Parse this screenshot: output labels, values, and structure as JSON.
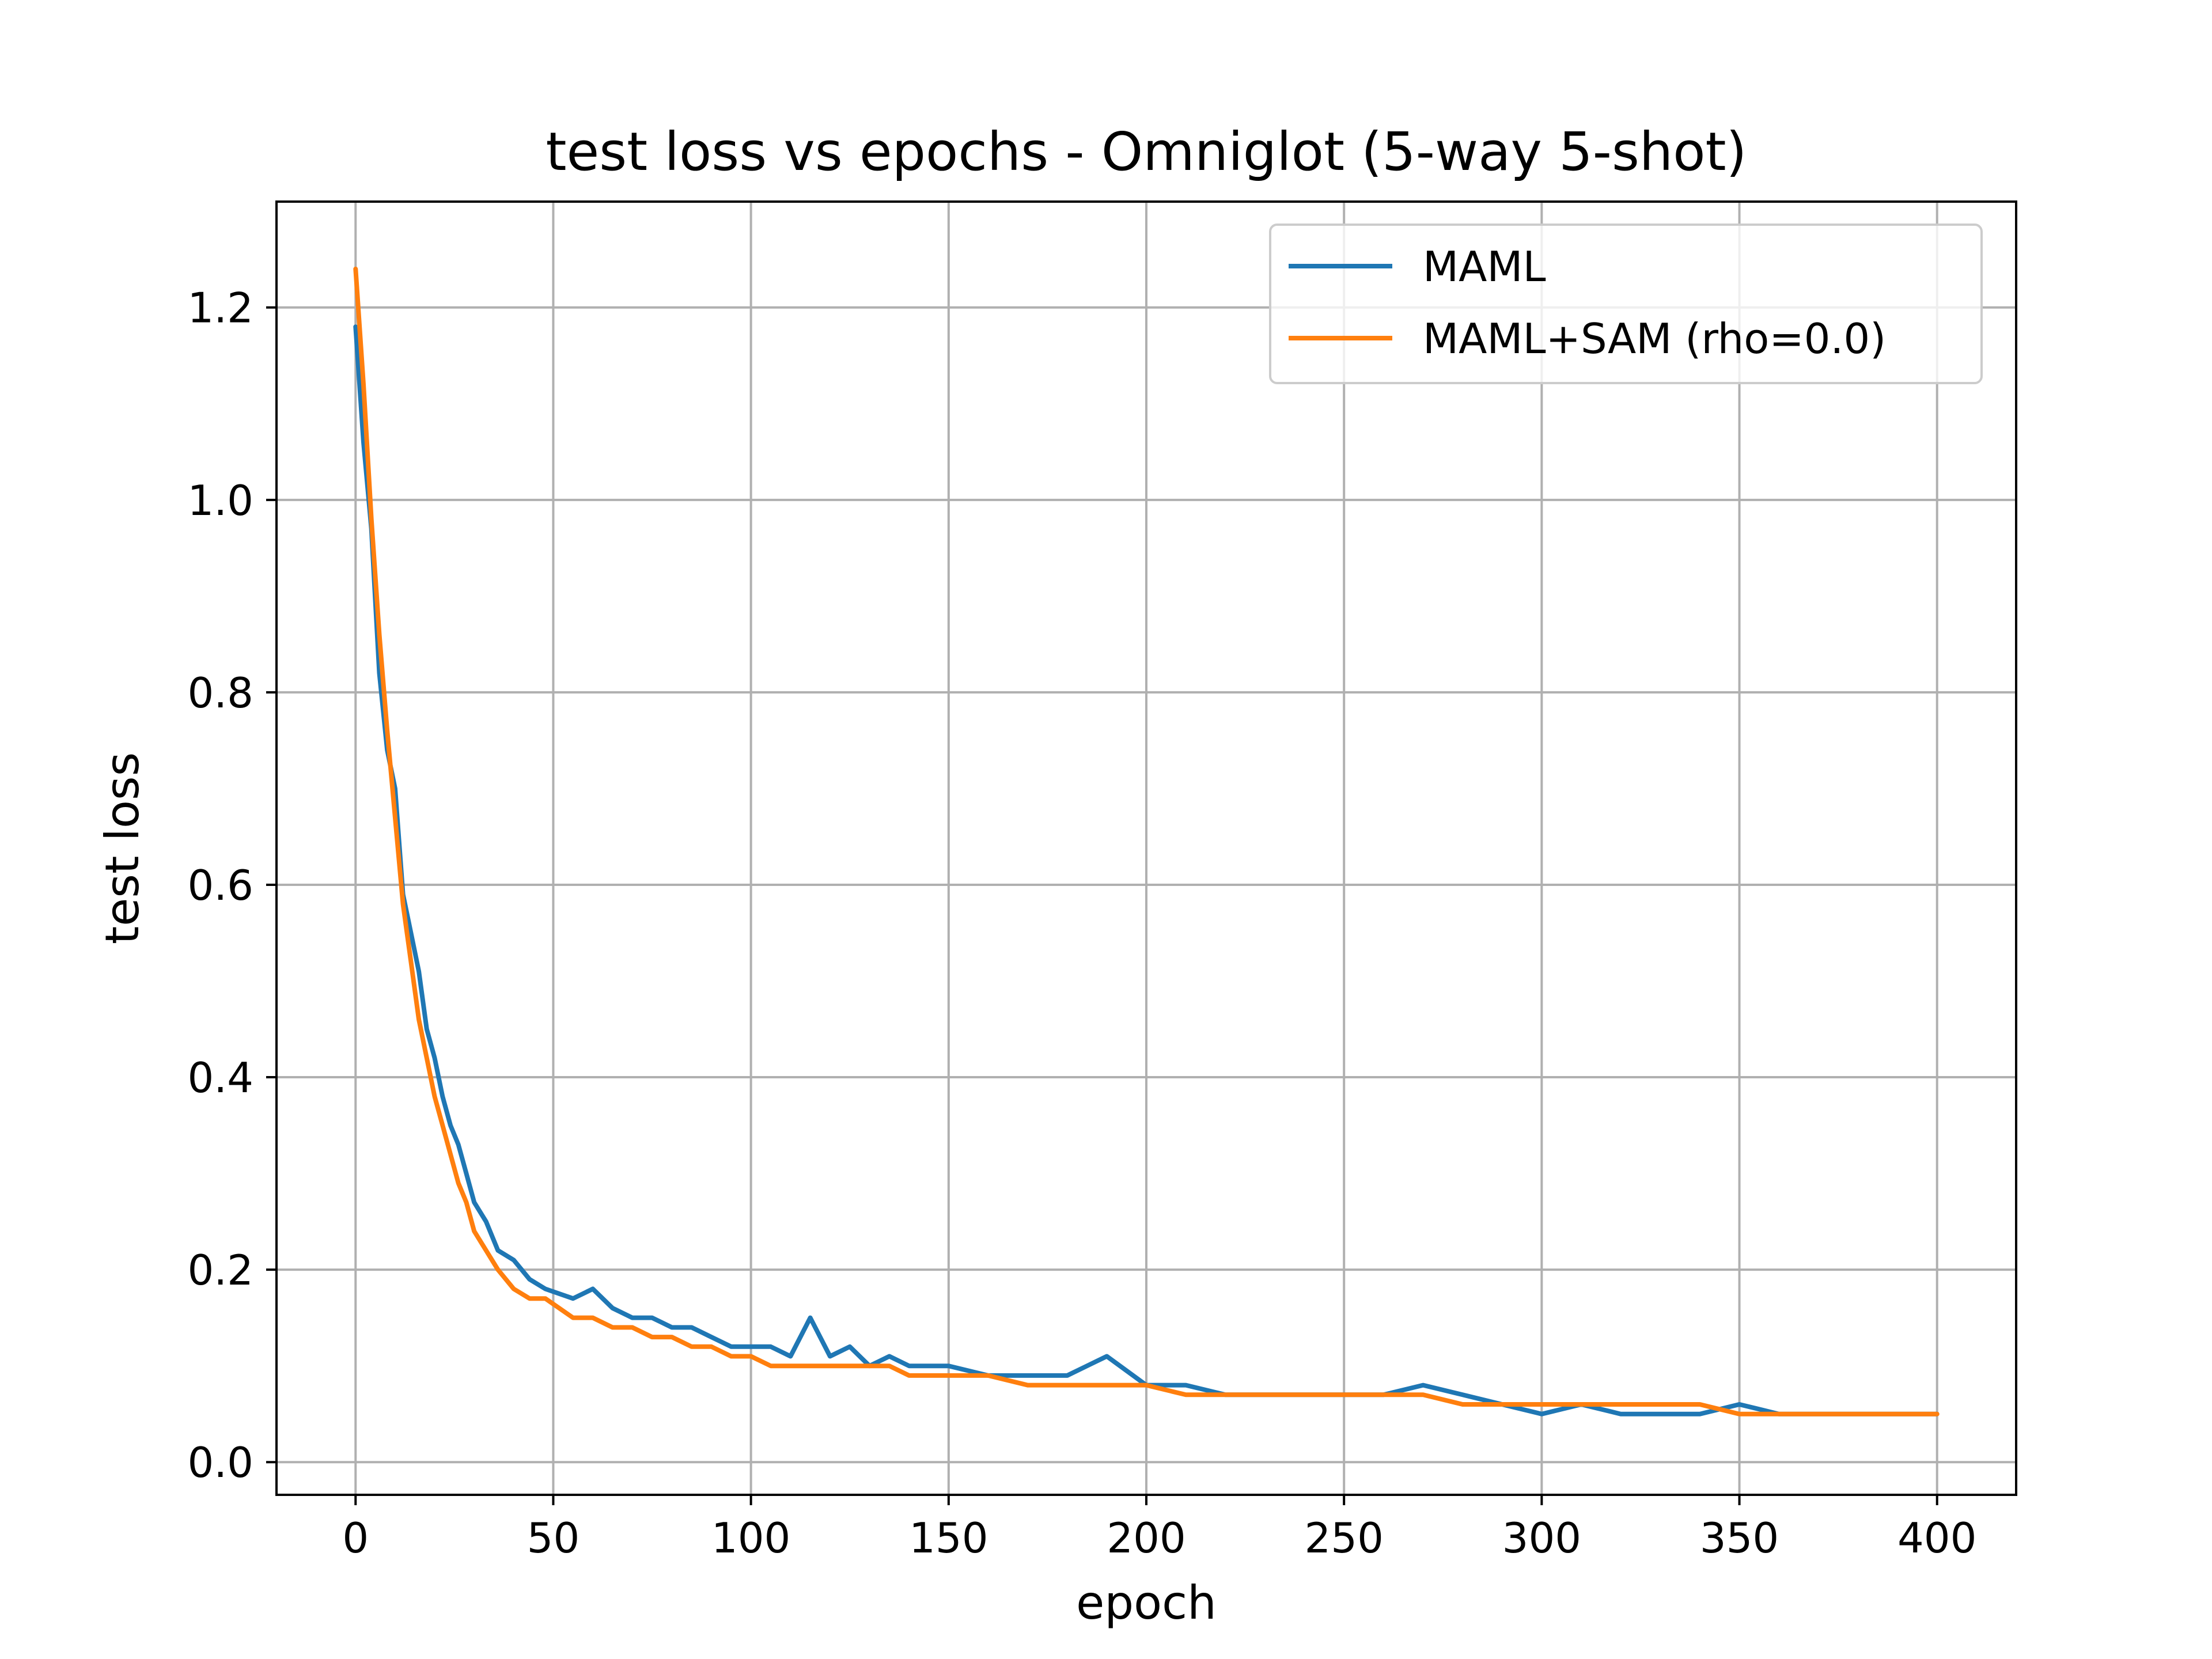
{
  "chart_data": {
    "type": "line",
    "title": "test loss vs epochs - Omniglot (5-way 5-shot)",
    "xlabel": "epoch",
    "ylabel": "test loss",
    "xlim": [
      -20,
      420
    ],
    "ylim": [
      -0.034,
      1.31
    ],
    "x_ticks": [
      "0",
      "50",
      "100",
      "150",
      "200",
      "250",
      "300",
      "350",
      "400"
    ],
    "x_tick_values": [
      0,
      50,
      100,
      150,
      200,
      250,
      300,
      350,
      400
    ],
    "y_ticks": [
      "0.0",
      "0.2",
      "0.4",
      "0.6",
      "0.8",
      "1.0",
      "1.2"
    ],
    "y_tick_values": [
      0.0,
      0.2,
      0.4,
      0.6,
      0.8,
      1.0,
      1.2
    ],
    "grid": true,
    "legend_position": "top-right",
    "series": [
      {
        "name": "MAML",
        "color": "#1f77b4",
        "x": [
          0,
          2,
          4,
          6,
          8,
          10,
          12,
          14,
          16,
          18,
          20,
          22,
          24,
          26,
          28,
          30,
          33,
          36,
          40,
          44,
          48,
          55,
          60,
          65,
          70,
          75,
          80,
          85,
          90,
          95,
          100,
          105,
          110,
          115,
          120,
          125,
          130,
          135,
          140,
          150,
          160,
          170,
          180,
          185,
          190,
          200,
          210,
          220,
          230,
          240,
          250,
          260,
          270,
          280,
          290,
          300,
          310,
          320,
          330,
          340,
          350,
          360,
          370,
          380,
          390,
          400
        ],
        "y": [
          1.18,
          1.06,
          0.97,
          0.82,
          0.74,
          0.7,
          0.59,
          0.55,
          0.51,
          0.45,
          0.42,
          0.38,
          0.35,
          0.33,
          0.3,
          0.27,
          0.25,
          0.22,
          0.21,
          0.19,
          0.18,
          0.17,
          0.18,
          0.16,
          0.15,
          0.15,
          0.14,
          0.14,
          0.13,
          0.12,
          0.12,
          0.12,
          0.11,
          0.15,
          0.11,
          0.12,
          0.1,
          0.11,
          0.1,
          0.1,
          0.09,
          0.09,
          0.09,
          0.1,
          0.11,
          0.08,
          0.08,
          0.07,
          0.07,
          0.07,
          0.07,
          0.07,
          0.08,
          0.07,
          0.06,
          0.05,
          0.06,
          0.05,
          0.05,
          0.05,
          0.06,
          0.05,
          0.05,
          0.05,
          0.05,
          0.05
        ]
      },
      {
        "name": "MAML+SAM (rho=0.0)",
        "color": "#ff7f0e",
        "x": [
          0,
          2,
          4,
          6,
          8,
          10,
          12,
          14,
          16,
          18,
          20,
          22,
          24,
          26,
          28,
          30,
          33,
          36,
          40,
          44,
          48,
          55,
          60,
          65,
          70,
          75,
          80,
          85,
          90,
          95,
          100,
          105,
          110,
          115,
          120,
          125,
          130,
          135,
          140,
          150,
          160,
          170,
          180,
          185,
          190,
          200,
          210,
          220,
          230,
          240,
          250,
          260,
          270,
          280,
          290,
          300,
          310,
          320,
          330,
          340,
          350,
          360,
          370,
          380,
          390,
          400
        ],
        "y": [
          1.24,
          1.12,
          0.98,
          0.86,
          0.76,
          0.67,
          0.58,
          0.52,
          0.46,
          0.42,
          0.38,
          0.35,
          0.32,
          0.29,
          0.27,
          0.24,
          0.22,
          0.2,
          0.18,
          0.17,
          0.17,
          0.15,
          0.15,
          0.14,
          0.14,
          0.13,
          0.13,
          0.12,
          0.12,
          0.11,
          0.11,
          0.1,
          0.1,
          0.1,
          0.1,
          0.1,
          0.1,
          0.1,
          0.09,
          0.09,
          0.09,
          0.08,
          0.08,
          0.08,
          0.08,
          0.08,
          0.07,
          0.07,
          0.07,
          0.07,
          0.07,
          0.07,
          0.07,
          0.06,
          0.06,
          0.06,
          0.06,
          0.06,
          0.06,
          0.06,
          0.05,
          0.05,
          0.05,
          0.05,
          0.05,
          0.05
        ]
      }
    ]
  }
}
